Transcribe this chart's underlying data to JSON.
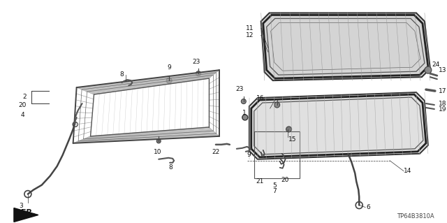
{
  "bg_color": "#ffffff",
  "part_number": "TP64B3810A",
  "lc": "#333333",
  "hatch_color": "#888888",
  "frame_color": "#444444",
  "glass_fill": "#cccccc",
  "track_fill": "#dddddd"
}
